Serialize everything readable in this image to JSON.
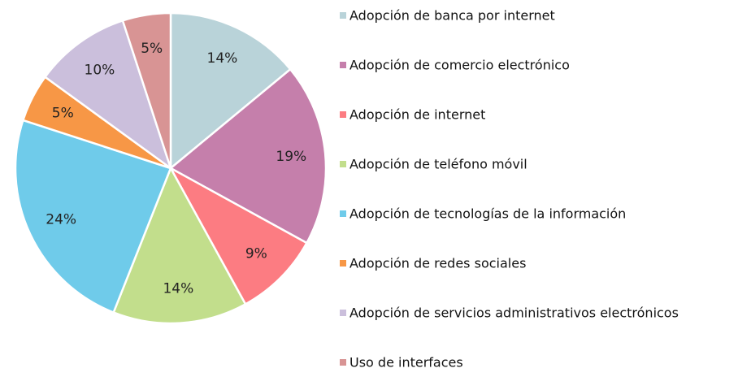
{
  "chart_data": {
    "type": "pie",
    "legend_placement": "right",
    "slices": [
      {
        "label": "Adopción de banca por internet",
        "value": 14,
        "display": "14%",
        "color": "#b9d3d9"
      },
      {
        "label": "Adopción de comercio electrónico",
        "value": 19,
        "display": "19%",
        "color": "#c57fab"
      },
      {
        "label": "Adopción de internet",
        "value": 9,
        "display": "9%",
        "color": "#fc7c82"
      },
      {
        "label": "Adopción de teléfono móvil",
        "value": 14,
        "display": "14%",
        "color": "#c2de8c"
      },
      {
        "label": "Adopción de tecnologías de la información",
        "value": 24,
        "display": "24%",
        "color": "#6fcbea"
      },
      {
        "label": "Adopción de redes sociales",
        "value": 5,
        "display": "5%",
        "color": "#f79746"
      },
      {
        "label": "Adopción de servicios administrativos electrónicos",
        "value": 10,
        "display": "10%",
        "color": "#cbbfdc"
      },
      {
        "label": "Uso de interfaces",
        "value": 5,
        "display": "5%",
        "color": "#d89494"
      }
    ]
  }
}
